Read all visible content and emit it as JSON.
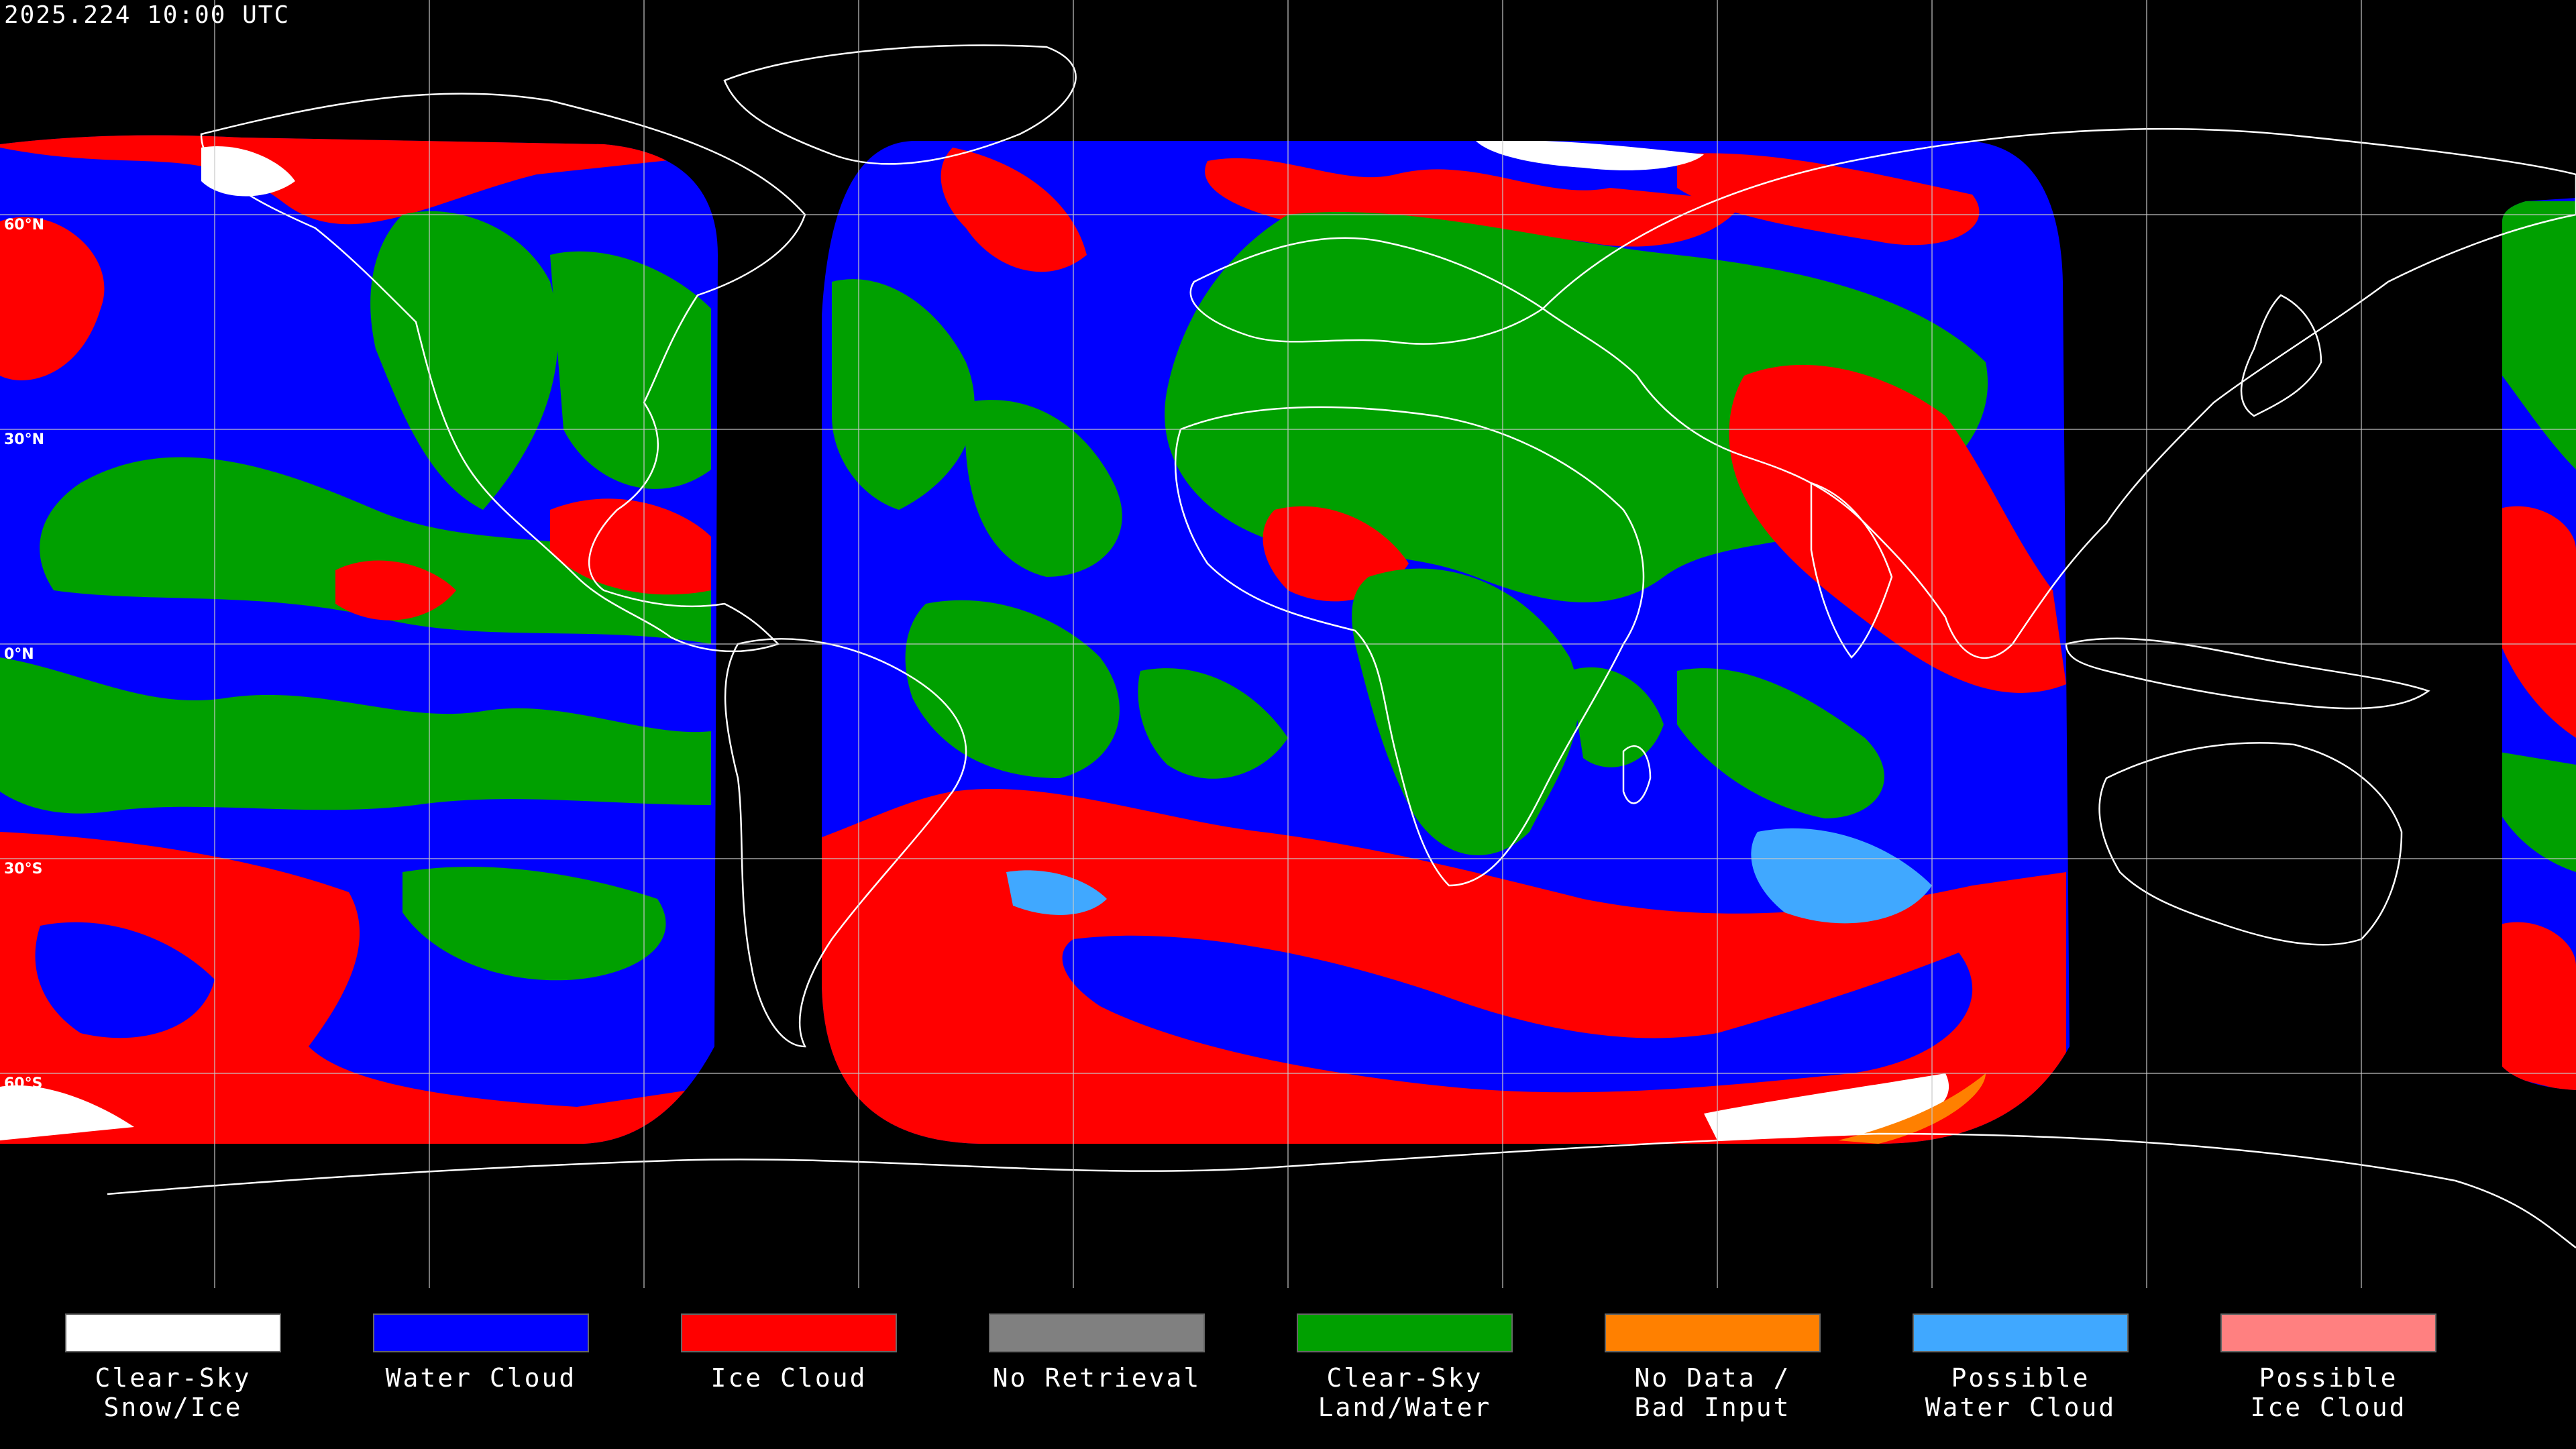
{
  "timestamp": "2025.224 10:00 UTC",
  "map": {
    "projection": "equirectangular",
    "background": "#000000",
    "gridline_color": "#ffffff",
    "coastline_color": "#ffffff",
    "latitude_labels": [
      "60°N",
      "30°N",
      "0°N",
      "30°S",
      "60°S"
    ]
  },
  "legend": [
    {
      "label": "Clear-Sky\nSnow/Ice",
      "color": "#ffffff"
    },
    {
      "label": "Water Cloud",
      "color": "#0000ff"
    },
    {
      "label": "Ice Cloud",
      "color": "#ff0000"
    },
    {
      "label": "No Retrieval",
      "color": "#808080"
    },
    {
      "label": "Clear-Sky\nLand/Water",
      "color": "#00a000"
    },
    {
      "label": "No Data /\nBad Input",
      "color": "#ff8000"
    },
    {
      "label": "Possible\nWater Cloud",
      "color": "#40a8ff"
    },
    {
      "label": "Possible\nIce Cloud",
      "color": "#ff8080"
    }
  ]
}
